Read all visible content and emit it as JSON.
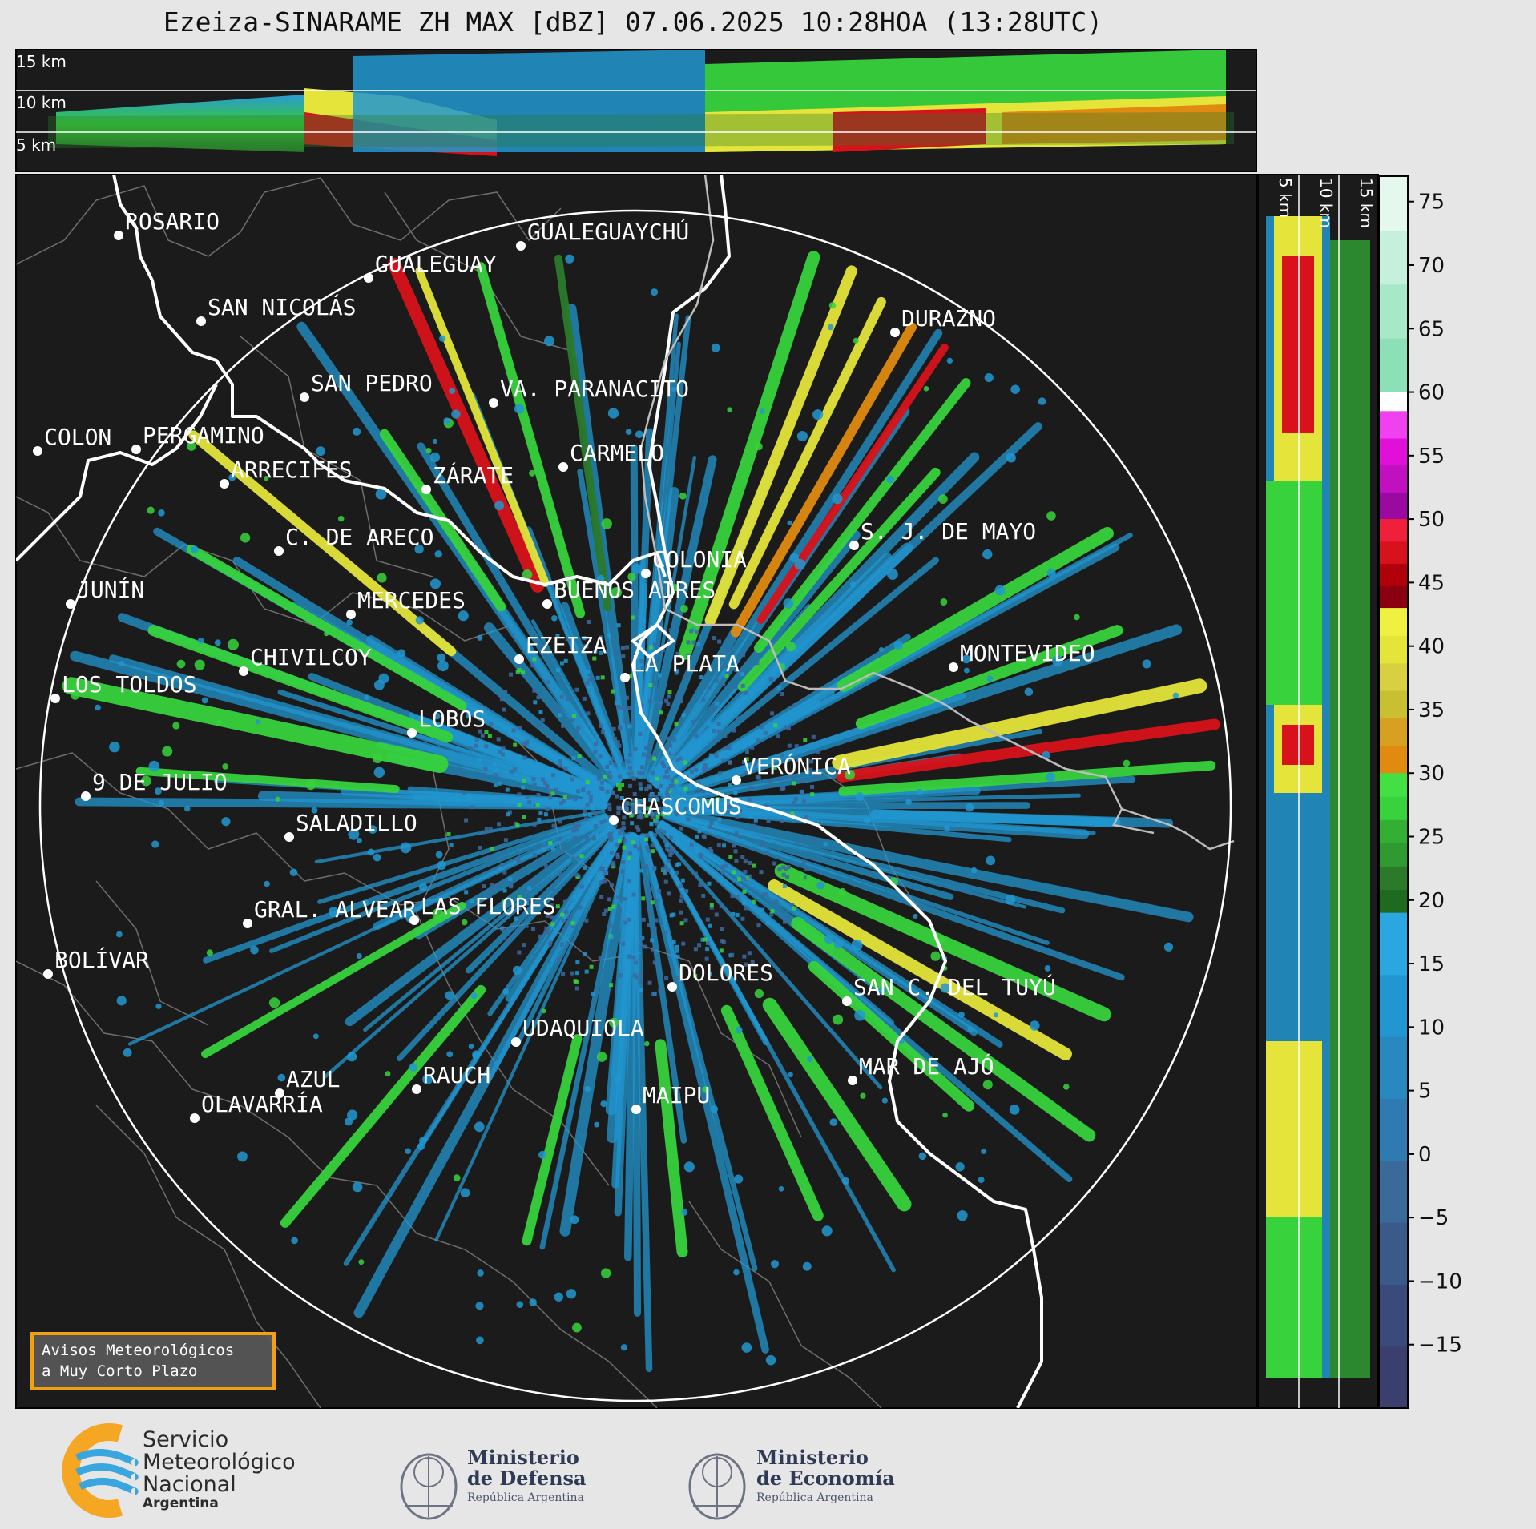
{
  "title": "Ezeiza-SINARAME ZH MAX [dBZ] 07.06.2025 10:28HOA (13:28UTC)",
  "top_profile_labels": [
    "15 km",
    "10 km",
    "5 km"
  ],
  "side_profile_labels": [
    "5 km",
    "10 km",
    "15 km"
  ],
  "colorbar": {
    "unit": "dBZ",
    "range": [
      -20,
      77
    ],
    "ticks": [
      "75",
      "70",
      "65",
      "60",
      "55",
      "50",
      "45",
      "40",
      "35",
      "30",
      "25",
      "20",
      "15",
      "10",
      "5",
      "0",
      "−5",
      "−10",
      "−15"
    ],
    "colors": {
      "low": "#3a3f6e",
      "blue": "#2196d0",
      "green": "#37d23c",
      "dark_green": "#2a7a2a",
      "yellow": "#e4e43a",
      "orange": "#e08a10",
      "red": "#d8121a",
      "magenta": "#e010d8",
      "high": "#8ce0b8"
    }
  },
  "cities": [
    {
      "name": "ROSARIO"
    },
    {
      "name": "GUALEGUAYCHÚ"
    },
    {
      "name": "GUALEGUAY"
    },
    {
      "name": "SAN NICOLÁS"
    },
    {
      "name": "DURAZNO"
    },
    {
      "name": "SAN PEDRO"
    },
    {
      "name": "VA. PARANACITO"
    },
    {
      "name": "COLON"
    },
    {
      "name": "PERGAMINO"
    },
    {
      "name": "CARMELO"
    },
    {
      "name": "ARRECIFES"
    },
    {
      "name": "ZÁRATE"
    },
    {
      "name": "C. DE ARECO"
    },
    {
      "name": "S. J. DE MAYO"
    },
    {
      "name": "COLONIA"
    },
    {
      "name": "JUNÍN"
    },
    {
      "name": "MERCEDES"
    },
    {
      "name": "BUENOS AIRES"
    },
    {
      "name": "EZEIZA"
    },
    {
      "name": "MONTEVIDEO"
    },
    {
      "name": "CHIVILCOY"
    },
    {
      "name": "LA PLATA"
    },
    {
      "name": "LOS TOLDOS"
    },
    {
      "name": "LOBOS"
    },
    {
      "name": "VERÓNICA"
    },
    {
      "name": "9 DE JULIO"
    },
    {
      "name": "CHASCOMÚS"
    },
    {
      "name": "SALADILLO"
    },
    {
      "name": "GRAL. ALVEAR"
    },
    {
      "name": "LAS FLORES"
    },
    {
      "name": "BOLÍVAR"
    },
    {
      "name": "DOLORES"
    },
    {
      "name": "SAN C. DEL TUYÚ"
    },
    {
      "name": "UDAQUIOLA"
    },
    {
      "name": "AZUL"
    },
    {
      "name": "RAUCH"
    },
    {
      "name": "MAR DE AJÓ"
    },
    {
      "name": "MAIPU"
    },
    {
      "name": "OLAVARRÍA"
    }
  ],
  "warning_box": {
    "line1": "Avisos Meteorológicos",
    "line2": "a Muy Corto Plazo"
  },
  "logos": {
    "smn": {
      "line1": "Servicio",
      "line2": "Meteorológico",
      "line3": "Nacional",
      "line4": "Argentina"
    },
    "defensa": {
      "line1": "Ministerio",
      "line2": "de Defensa",
      "line3": "República Argentina"
    },
    "economia": {
      "line1": "Ministerio",
      "line2": "de Economía",
      "line3": "República Argentina"
    }
  }
}
